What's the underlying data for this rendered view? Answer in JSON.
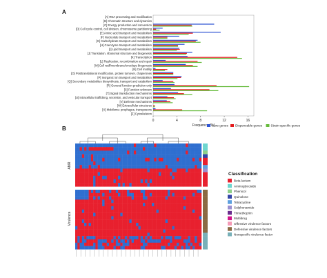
{
  "chart_data": [
    {
      "panel": "A",
      "type": "bar",
      "orientation": "horizontal",
      "xlabel": "Frequency (%)",
      "xlim": [
        0,
        17
      ],
      "xticks": [
        0,
        4,
        8,
        12,
        16
      ],
      "categories": [
        "[A] RNA processing and modification",
        "[B] Chromatin structure and dynamics",
        "[C] Energy production and conversion",
        "[D] Cell cycle control, cell division, chromosome partitioning",
        "[E] Amino acid transport and metabolism",
        "[F] Nucleotide transport and metabolism",
        "[G] Carbohydrate transport and metabolism",
        "[H] Coenzyme transport and metabolism",
        "[I] Lipid transport and metabolism",
        "[J] Translation, ribosomal structure and biogenesis",
        "[K] Transcription",
        "[L] Replication, recombination and repair",
        "[M] Cell wall/membrane/envelope biogenesis",
        "[N] Cell motility",
        "[O] Posttranslational modification, protein turnover, chaperones",
        "[P] Inorganic ion transport and metabolism",
        "[Q] Secondary metabolites biosynthesis, transport and catabolism",
        "[R] General function prediction only",
        "[S] Function unknown",
        "[T] Signal transduction mechanisms",
        "[U] Intracellular trafficking, secretion, and vesicular transport",
        "[V] Defense mechanisms",
        "[W] Extracellular structures",
        "[X] Mobilome: prophages, transposons",
        "[Z] Cytoskeleton"
      ],
      "series": [
        {
          "name": "Core genes",
          "color": "#2f55d4",
          "values": [
            0.0,
            0.0,
            10.3,
            1.6,
            11.4,
            4.4,
            7.5,
            5.3,
            4.4,
            6.6,
            5.8,
            2.1,
            5.5,
            0.4,
            3.4,
            4.8,
            1.6,
            3.6,
            3.0,
            4.2,
            2.4,
            2.3,
            0.0,
            0.4,
            0.0
          ]
        },
        {
          "name": "Dispensable genes",
          "color": "#e31a1c",
          "values": [
            0.0,
            0.0,
            6.5,
            0.5,
            6.7,
            2.4,
            7.2,
            4.2,
            4.5,
            5.7,
            14.2,
            7.5,
            6.7,
            2.4,
            3.4,
            4.7,
            3.4,
            10.7,
            9.5,
            5.2,
            3.5,
            2.9,
            0.3,
            4.9,
            0.0
          ]
        },
        {
          "name": "Strain-specific genes",
          "color": "#66bb3c",
          "values": [
            0.0,
            0.0,
            6.6,
            1.1,
            6.0,
            2.4,
            8.0,
            4.2,
            4.0,
            5.6,
            15.0,
            8.2,
            7.5,
            2.0,
            3.4,
            4.1,
            3.6,
            16.2,
            11.0,
            6.6,
            3.8,
            3.3,
            0.3,
            9.1,
            0.0
          ]
        }
      ],
      "legend_position": "bottom"
    },
    {
      "panel": "B",
      "type": "heatmap",
      "row_groups": [
        "AMR",
        "Virulence"
      ],
      "legend_title": "Classification",
      "legend": [
        {
          "label": "Beta-lactam",
          "color": "#e8202e"
        },
        {
          "label": "Aminoglycoside",
          "color": "#6ed6cf"
        },
        {
          "label": "Phenicol",
          "color": "#8fd08a"
        },
        {
          "label": "Quinolone",
          "color": "#3346a8"
        },
        {
          "label": "Tetracycline",
          "color": "#5da0df"
        },
        {
          "label": "Sulphonamide",
          "color": "#9b8fd0"
        },
        {
          "label": "Trimethoprim",
          "color": "#6a2d8e"
        },
        {
          "label": "Multidrug",
          "color": "#d1178a"
        },
        {
          "label": "Offensive virulence factors",
          "color": "#f59bb7"
        },
        {
          "label": "Defensive virulence factors",
          "color": "#8b6a43"
        },
        {
          "label": "Nonspecific virulence factor",
          "color": "#78b0b8"
        }
      ],
      "values_legend": {
        "present": "#e8202e",
        "absent": "#2f6fd0"
      }
    }
  ]
}
